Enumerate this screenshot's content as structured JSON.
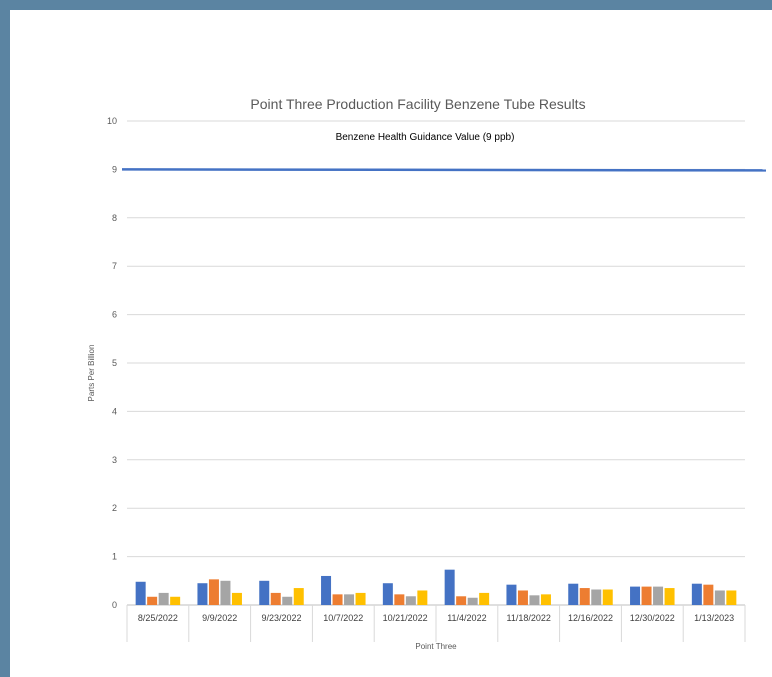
{
  "chart_data": {
    "type": "bar",
    "title": "Point Three Production Facility Benzene Tube Results",
    "ylabel": "Parts Per Billion",
    "xlabel": "Point Three",
    "ylim": [
      0,
      10
    ],
    "yticks": [
      0,
      1,
      2,
      3,
      4,
      5,
      6,
      7,
      8,
      9,
      10
    ],
    "categories": [
      "8/25/2022",
      "9/9/2022",
      "9/23/2022",
      "10/7/2022",
      "10/21/2022",
      "11/4/2022",
      "11/18/2022",
      "12/16/2022",
      "12/30/2022",
      "1/13/2023"
    ],
    "series": [
      {
        "color": "#4472c4",
        "values": [
          0.48,
          0.45,
          0.5,
          0.6,
          0.45,
          0.73,
          0.42,
          0.44,
          0.38,
          0.44
        ]
      },
      {
        "color": "#ed7d31",
        "values": [
          0.17,
          0.53,
          0.25,
          0.22,
          0.22,
          0.18,
          0.3,
          0.35,
          0.38,
          0.42
        ]
      },
      {
        "color": "#a5a5a5",
        "values": [
          0.25,
          0.5,
          0.17,
          0.22,
          0.18,
          0.15,
          0.2,
          0.32,
          0.38,
          0.3
        ]
      },
      {
        "color": "#ffc000",
        "values": [
          0.17,
          0.25,
          0.35,
          0.25,
          0.3,
          0.25,
          0.22,
          0.32,
          0.35,
          0.3
        ]
      }
    ],
    "reference_line": {
      "label": "Benzene Health Guidance Value (9 ppb)",
      "value": 9,
      "color": "#4472c4"
    },
    "grid": true,
    "legend": "none"
  }
}
